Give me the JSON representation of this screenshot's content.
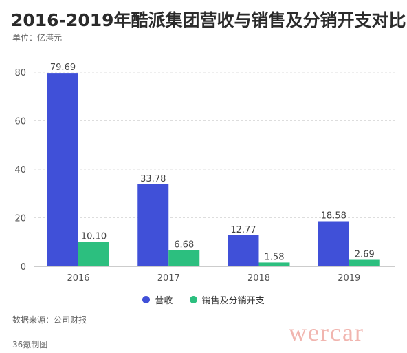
{
  "title": "2016-2019年酷派集团营收与销售及分销开支对比",
  "unit": "单位：亿港元",
  "source": "数据来源：公司财报",
  "credit": "36氪制图",
  "watermark": "wercar",
  "chart_data": {
    "type": "bar",
    "categories": [
      "2016",
      "2017",
      "2018",
      "2019"
    ],
    "series": [
      {
        "name": "营收",
        "values": [
          79.69,
          33.78,
          12.77,
          18.58
        ],
        "color": "#4050d8"
      },
      {
        "name": "销售及分销开支",
        "values": [
          10.1,
          6.68,
          1.58,
          2.69
        ],
        "color": "#2cbf7f"
      }
    ],
    "value_labels": [
      [
        "79.69",
        "33.78",
        "12.77",
        "18.58"
      ],
      [
        "10.10",
        "6.68",
        "1.58",
        "2.69"
      ]
    ],
    "ylim": [
      0,
      80
    ],
    "yticks": [
      "0",
      "20",
      "40",
      "60",
      "80"
    ],
    "grid": true,
    "legend": "bottom"
  }
}
